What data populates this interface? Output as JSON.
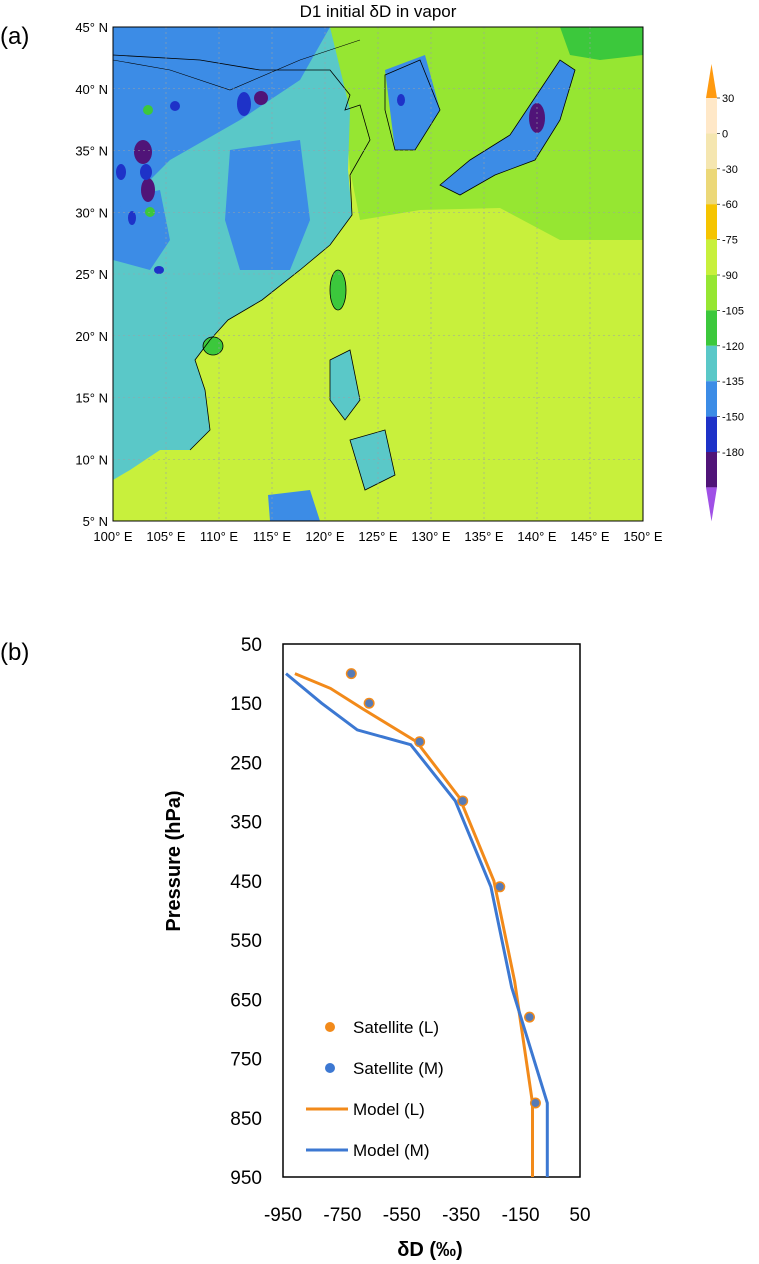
{
  "chart_data": [
    {
      "panel": "(a)",
      "type": "heatmap",
      "title": "D1 initial δD in vapor",
      "x_ticks": [
        "100° E",
        "105° E",
        "110° E",
        "115° E",
        "120° E",
        "125° E",
        "130° E",
        "135° E",
        "140° E",
        "145° E",
        "150° E"
      ],
      "y_ticks": [
        "45° N",
        "40° N",
        "35° N",
        "30° N",
        "25° N",
        "20° N",
        "15° N",
        "10° N",
        "5° N"
      ],
      "xlim": [
        100,
        150
      ],
      "ylim": [
        5,
        45
      ],
      "grid": true,
      "colorbar": {
        "labels": [
          "30",
          "0",
          "-30",
          "-60",
          "-75",
          "-90",
          "-105",
          "-120",
          "-135",
          "-150",
          "-180"
        ],
        "colors": [
          "#ffe8c8",
          "#f5e6b0",
          "#ecd878",
          "#f5c400",
          "#c8f03c",
          "#96e632",
          "#3cc83c",
          "#5ac8c8",
          "#3c8ce6",
          "#1e32c8",
          "#501478",
          "#a050e6",
          "#ff9a10"
        ]
      }
    },
    {
      "panel": "(b)",
      "type": "line",
      "xlabel": "δD (‰)",
      "ylabel": "Pressure (hPa)",
      "xlim": [
        -950,
        50
      ],
      "ylim": [
        950,
        50
      ],
      "x_ticks": [
        "-950",
        "-750",
        "-550",
        "-350",
        "-150",
        "50"
      ],
      "y_ticks": [
        "50",
        "150",
        "250",
        "350",
        "450",
        "550",
        "650",
        "750",
        "850",
        "950"
      ],
      "legend_position": "bottom-left",
      "series": [
        {
          "name": "Satellite (L)",
          "kind": "scatter",
          "color": "#f28a1a",
          "x": [
            -720,
            -660,
            -490,
            -345,
            -220,
            -120,
            -100
          ],
          "y": [
            100,
            150,
            215,
            315,
            460,
            680,
            825
          ]
        },
        {
          "name": "Satellite (M)",
          "kind": "scatter",
          "color": "#3c78d2",
          "x": [
            -720,
            -660,
            -490,
            -345,
            -220,
            -120,
            -100
          ],
          "y": [
            100,
            150,
            215,
            315,
            460,
            680,
            825
          ]
        },
        {
          "name": "Model (L)",
          "kind": "line",
          "color": "#f28a1a",
          "x": [
            -910,
            -790,
            -680,
            -500,
            -355,
            -240,
            -170,
            -110,
            -110
          ],
          "y": [
            100,
            125,
            160,
            215,
            310,
            450,
            620,
            825,
            950
          ]
        },
        {
          "name": "Model (M)",
          "kind": "line",
          "color": "#3c78d2",
          "x": [
            -940,
            -820,
            -700,
            -520,
            -370,
            -250,
            -180,
            -60,
            -60
          ],
          "y": [
            100,
            150,
            195,
            220,
            315,
            460,
            630,
            825,
            950
          ]
        }
      ]
    }
  ]
}
